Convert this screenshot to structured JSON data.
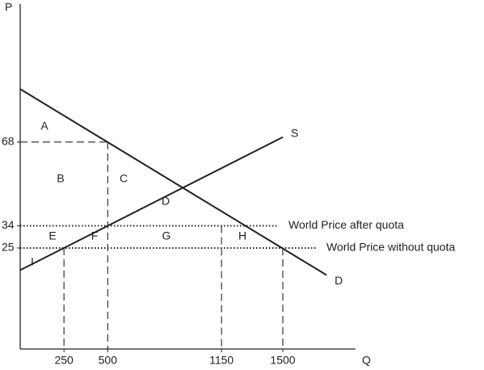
{
  "chart_data": {
    "type": "line",
    "x_label": "Q",
    "y_label": "P",
    "xlim": [
      0,
      1800
    ],
    "ylim": [
      -16,
      125
    ],
    "xticks": [
      250,
      500,
      1150,
      1500
    ],
    "yticks": [
      25,
      34,
      68
    ],
    "series": [
      {
        "name": "S",
        "color": "#222222",
        "x": [
          0,
          1500
        ],
        "values": [
          16,
          70
        ]
      },
      {
        "name": "D",
        "color": "#222222",
        "x": [
          0,
          1750
        ],
        "values": [
          89.5,
          14
        ]
      }
    ],
    "price_lines": [
      {
        "label": "World Price after quota",
        "value": 34
      },
      {
        "label": "World Price without quota",
        "value": 25
      }
    ],
    "drop_lines": [
      {
        "x": 250,
        "y": 25
      },
      {
        "x": 500,
        "y": 68,
        "horizontal": true
      },
      {
        "x": 1150,
        "y": 34
      },
      {
        "x": 1500,
        "y": 25
      }
    ],
    "areas": [
      "A",
      "B",
      "C",
      "D",
      "E",
      "F",
      "G",
      "H",
      "I"
    ]
  }
}
